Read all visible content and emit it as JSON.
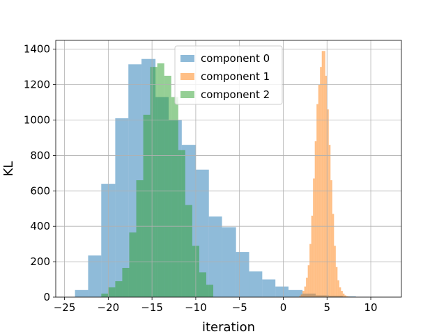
{
  "chart_data": {
    "type": "histogram",
    "title": "",
    "xlabel": "iteration",
    "ylabel": "KL",
    "xlim": [
      -26.0,
      13.5
    ],
    "ylim": [
      0,
      1450
    ],
    "xticks": [
      -25,
      -20,
      -15,
      -10,
      -5,
      0,
      5,
      10
    ],
    "xtick_labels": [
      "−25",
      "−20",
      "−15",
      "−10",
      "−5",
      "0",
      "5",
      "10"
    ],
    "yticks": [
      0,
      200,
      400,
      600,
      800,
      1000,
      1200,
      1400
    ],
    "ytick_labels": [
      "0",
      "200",
      "400",
      "600",
      "800",
      "1000",
      "1200",
      "1400"
    ],
    "grid": true,
    "legend_position": "upper-center",
    "series": [
      {
        "name": "component 0",
        "color": "#1f77b4",
        "alpha": 0.5,
        "bin_edges": [
          -23.8,
          -22.3,
          -20.8,
          -19.2,
          -17.7,
          -16.2,
          -14.6,
          -13.1,
          -11.6,
          -10.0,
          -8.5,
          -7.0,
          -5.4,
          -3.9,
          -2.4,
          -0.9,
          0.6,
          2.2,
          3.7,
          5.2,
          6.8,
          8.3,
          9.8,
          11.3
        ],
        "counts": [
          40,
          235,
          640,
          1010,
          1315,
          1345,
          1130,
          1000,
          860,
          720,
          455,
          395,
          255,
          145,
          100,
          60,
          40,
          20,
          10,
          8,
          4,
          2,
          1
        ]
      },
      {
        "name": "component 1",
        "color": "#ff7f0e",
        "alpha": 0.5,
        "bin_edges": [
          1.8,
          2.0,
          2.2,
          2.4,
          2.6,
          2.8,
          3.0,
          3.2,
          3.4,
          3.6,
          3.8,
          4.0,
          4.2,
          4.4,
          4.6,
          4.8,
          5.0,
          5.2,
          5.4,
          5.6,
          5.8,
          6.0,
          6.2,
          6.4,
          6.6,
          6.8,
          7.0,
          7.2,
          7.4,
          7.6,
          7.8,
          8.0
        ],
        "counts": [
          5,
          15,
          35,
          60,
          110,
          180,
          300,
          460,
          670,
          880,
          1090,
          1200,
          1300,
          1390,
          1390,
          1250,
          1060,
          860,
          660,
          470,
          290,
          170,
          95,
          55,
          35,
          20,
          10,
          5,
          3,
          2,
          1
        ]
      },
      {
        "name": "component 2",
        "color": "#2ca02c",
        "alpha": 0.5,
        "bin_edges": [
          -20.8,
          -20.0,
          -19.2,
          -18.4,
          -17.6,
          -16.8,
          -16.0,
          -15.2,
          -14.4,
          -13.6,
          -12.8,
          -12.0,
          -11.2,
          -10.4,
          -9.6,
          -8.8,
          -8.0
        ],
        "counts": [
          20,
          55,
          90,
          165,
          365,
          660,
          1030,
          1300,
          1320,
          1250,
          1130,
          830,
          520,
          290,
          140,
          70
        ]
      }
    ]
  }
}
